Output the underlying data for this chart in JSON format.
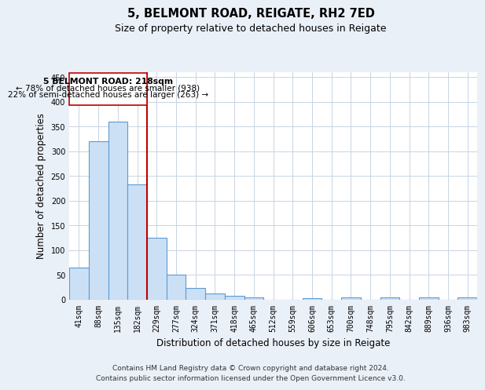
{
  "title": "5, BELMONT ROAD, REIGATE, RH2 7ED",
  "subtitle": "Size of property relative to detached houses in Reigate",
  "xlabel": "Distribution of detached houses by size in Reigate",
  "ylabel": "Number of detached properties",
  "footer_line1": "Contains HM Land Registry data © Crown copyright and database right 2024.",
  "footer_line2": "Contains public sector information licensed under the Open Government Licence v3.0.",
  "categories": [
    "41sqm",
    "88sqm",
    "135sqm",
    "182sqm",
    "229sqm",
    "277sqm",
    "324sqm",
    "371sqm",
    "418sqm",
    "465sqm",
    "512sqm",
    "559sqm",
    "606sqm",
    "653sqm",
    "700sqm",
    "748sqm",
    "795sqm",
    "842sqm",
    "889sqm",
    "936sqm",
    "983sqm"
  ],
  "values": [
    65,
    320,
    360,
    233,
    125,
    50,
    24,
    13,
    8,
    5,
    0,
    0,
    3,
    0,
    4,
    0,
    4,
    0,
    4,
    0,
    4
  ],
  "bar_color": "#cce0f5",
  "bar_edge_color": "#5b9bd5",
  "bar_edge_width": 0.8,
  "vline_x": 3.5,
  "vline_color": "#c00000",
  "annotation_line1": "5 BELMONT ROAD: 218sqm",
  "annotation_line2": "← 78% of detached houses are smaller (938)",
  "annotation_line3": "22% of semi-detached houses are larger (263) →",
  "annotation_box_color": "#c00000",
  "ylim": [
    0,
    460
  ],
  "yticks": [
    0,
    50,
    100,
    150,
    200,
    250,
    300,
    350,
    400,
    450
  ],
  "bg_color": "#eaf0f8",
  "plot_bg_color": "#ffffff",
  "grid_color": "#c8d4e3",
  "title_fontsize": 10.5,
  "subtitle_fontsize": 9,
  "axis_label_fontsize": 8.5,
  "tick_fontsize": 7,
  "footer_fontsize": 6.5
}
